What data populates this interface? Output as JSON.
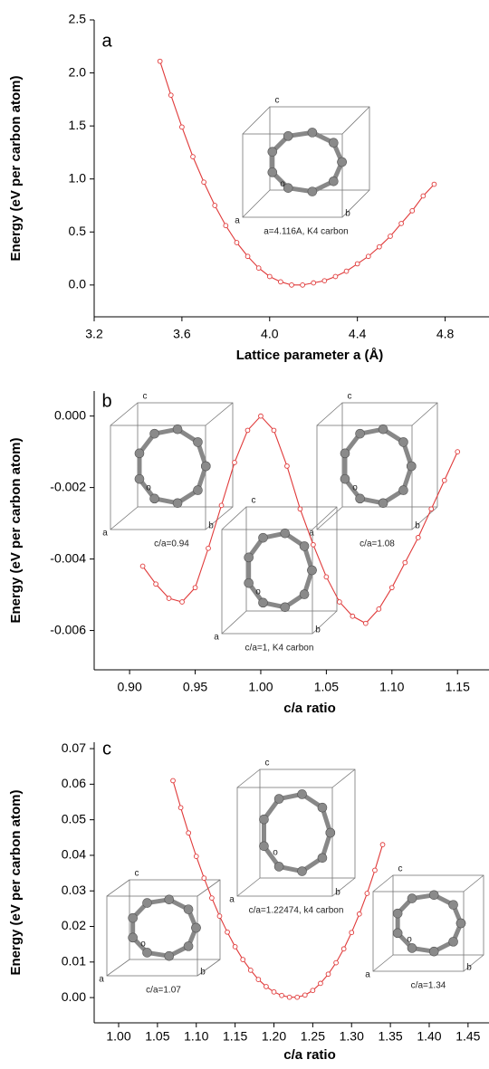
{
  "chart_data": [
    {
      "type": "line",
      "panel_label": "a",
      "xlabel": "Lattice parameter a (Å)",
      "ylabel": "Energy (eV per carbon atom)",
      "color": "#e03a3a",
      "x": [
        3.5,
        3.55,
        3.6,
        3.65,
        3.7,
        3.75,
        3.8,
        3.85,
        3.9,
        3.95,
        4.0,
        4.05,
        4.1,
        4.15,
        4.2,
        4.25,
        4.3,
        4.35,
        4.4,
        4.45,
        4.5,
        4.55,
        4.6,
        4.65,
        4.7,
        4.75
      ],
      "values": [
        2.11,
        1.79,
        1.49,
        1.21,
        0.97,
        0.75,
        0.56,
        0.4,
        0.27,
        0.16,
        0.08,
        0.03,
        0.0,
        0.0,
        0.02,
        0.04,
        0.08,
        0.13,
        0.2,
        0.27,
        0.36,
        0.46,
        0.58,
        0.7,
        0.84,
        0.95
      ],
      "xlim": [
        3.2,
        5.0
      ],
      "xticks": [
        3.2,
        3.6,
        {
          "value": 4.0,
          "label": "4.0"
        },
        4.4,
        4.8
      ],
      "ylim": [
        -0.3,
        2.5
      ],
      "yticks": [
        {
          "value": 0,
          "label": "0.0"
        },
        0.5,
        {
          "value": 1,
          "label": "1.0"
        },
        1.5,
        {
          "value": 2,
          "label": "2.0"
        },
        2.5
      ],
      "insets": [
        {
          "caption": "a=4.116A, K4 carbon",
          "labels": [
            "c",
            "o",
            "a",
            "b"
          ]
        }
      ]
    },
    {
      "type": "line",
      "panel_label": "b",
      "xlabel": "c/a ratio",
      "ylabel": "Energy (eV per carbon atom)",
      "color": "#e03a3a",
      "x": [
        0.91,
        0.92,
        0.93,
        0.94,
        0.95,
        0.96,
        0.97,
        0.98,
        0.99,
        1.0,
        1.01,
        1.02,
        1.03,
        1.04,
        1.05,
        1.06,
        1.07,
        1.08,
        1.09,
        1.1,
        1.11,
        1.12,
        1.13,
        1.14,
        1.15
      ],
      "values": [
        -0.0042,
        -0.0047,
        -0.0051,
        -0.0052,
        -0.0048,
        -0.0037,
        -0.0025,
        -0.0013,
        -0.0004,
        0.0,
        -0.0004,
        -0.0014,
        -0.0026,
        -0.0036,
        -0.0045,
        -0.0052,
        -0.0056,
        -0.0058,
        -0.0054,
        -0.0048,
        -0.0041,
        -0.0034,
        -0.0026,
        -0.0018,
        -0.001
      ],
      "xlim": [
        0.873,
        1.174
      ],
      "xticks": [
        {
          "value": 0.9,
          "label": "0.90"
        },
        0.95,
        {
          "value": 1,
          "label": "1.00"
        },
        1.05,
        {
          "value": 1.1,
          "label": "1.10"
        },
        1.15
      ],
      "ylim": [
        -0.0071,
        0.0007
      ],
      "yticks": [
        -0.006,
        -0.004,
        -0.002,
        {
          "value": 0,
          "label": "0.000"
        }
      ],
      "insets": [
        {
          "caption": "c/a=0.94",
          "labels": [
            "c",
            "o",
            "a",
            "b"
          ]
        },
        {
          "caption": "c/a=1.08",
          "labels": [
            "c",
            "o",
            "a",
            "b"
          ]
        },
        {
          "caption": "c/a=1, K4 carbon",
          "labels": [
            "c",
            "o",
            "a",
            "b"
          ]
        }
      ]
    },
    {
      "type": "line",
      "panel_label": "c",
      "xlabel": "c/a ratio",
      "ylabel": "Energy (eV per carbon atom)",
      "color": "#e03a3a",
      "x": [
        1.07,
        1.08,
        1.09,
        1.1,
        1.11,
        1.12,
        1.13,
        1.14,
        1.15,
        1.16,
        1.17,
        1.18,
        1.19,
        1.2,
        1.21,
        1.22,
        1.23,
        1.24,
        1.25,
        1.26,
        1.27,
        1.28,
        1.29,
        1.3,
        1.31,
        1.32,
        1.33,
        1.34
      ],
      "values": [
        0.061,
        0.0534,
        0.0463,
        0.0397,
        0.0336,
        0.028,
        0.0229,
        0.0184,
        0.0143,
        0.0107,
        0.0077,
        0.0051,
        0.0031,
        0.0016,
        0.0006,
        0.0001,
        0.0001,
        0.0007,
        0.002,
        0.004,
        0.0066,
        0.0098,
        0.0137,
        0.0183,
        0.0235,
        0.0293,
        0.0358,
        0.043
      ],
      "xlim": [
        0.9685,
        1.477
      ],
      "xticks": [
        {
          "value": 1,
          "label": "1.00"
        },
        1.05,
        {
          "value": 1.1,
          "label": "1.10"
        },
        1.15,
        {
          "value": 1.2,
          "label": "1.20"
        },
        1.25,
        {
          "value": 1.3,
          "label": "1.30"
        },
        1.35,
        {
          "value": 1.4,
          "label": "1.40"
        },
        1.45
      ],
      "ylim": [
        -0.0071,
        0.0718
      ],
      "yticks": [
        {
          "value": 0,
          "label": "0.00"
        },
        0.01,
        0.02,
        0.03,
        0.04,
        0.05,
        0.06,
        0.07
      ],
      "insets": [
        {
          "caption": "c/a=1.22474, k4 carbon",
          "labels": [
            "c",
            "o",
            "a",
            "b"
          ]
        },
        {
          "caption": "c/a=1.07",
          "labels": [
            "c",
            "o",
            "a",
            "b"
          ]
        },
        {
          "caption": "c/a=1.34",
          "labels": [
            "c",
            "o",
            "a",
            "b"
          ]
        }
      ]
    }
  ]
}
